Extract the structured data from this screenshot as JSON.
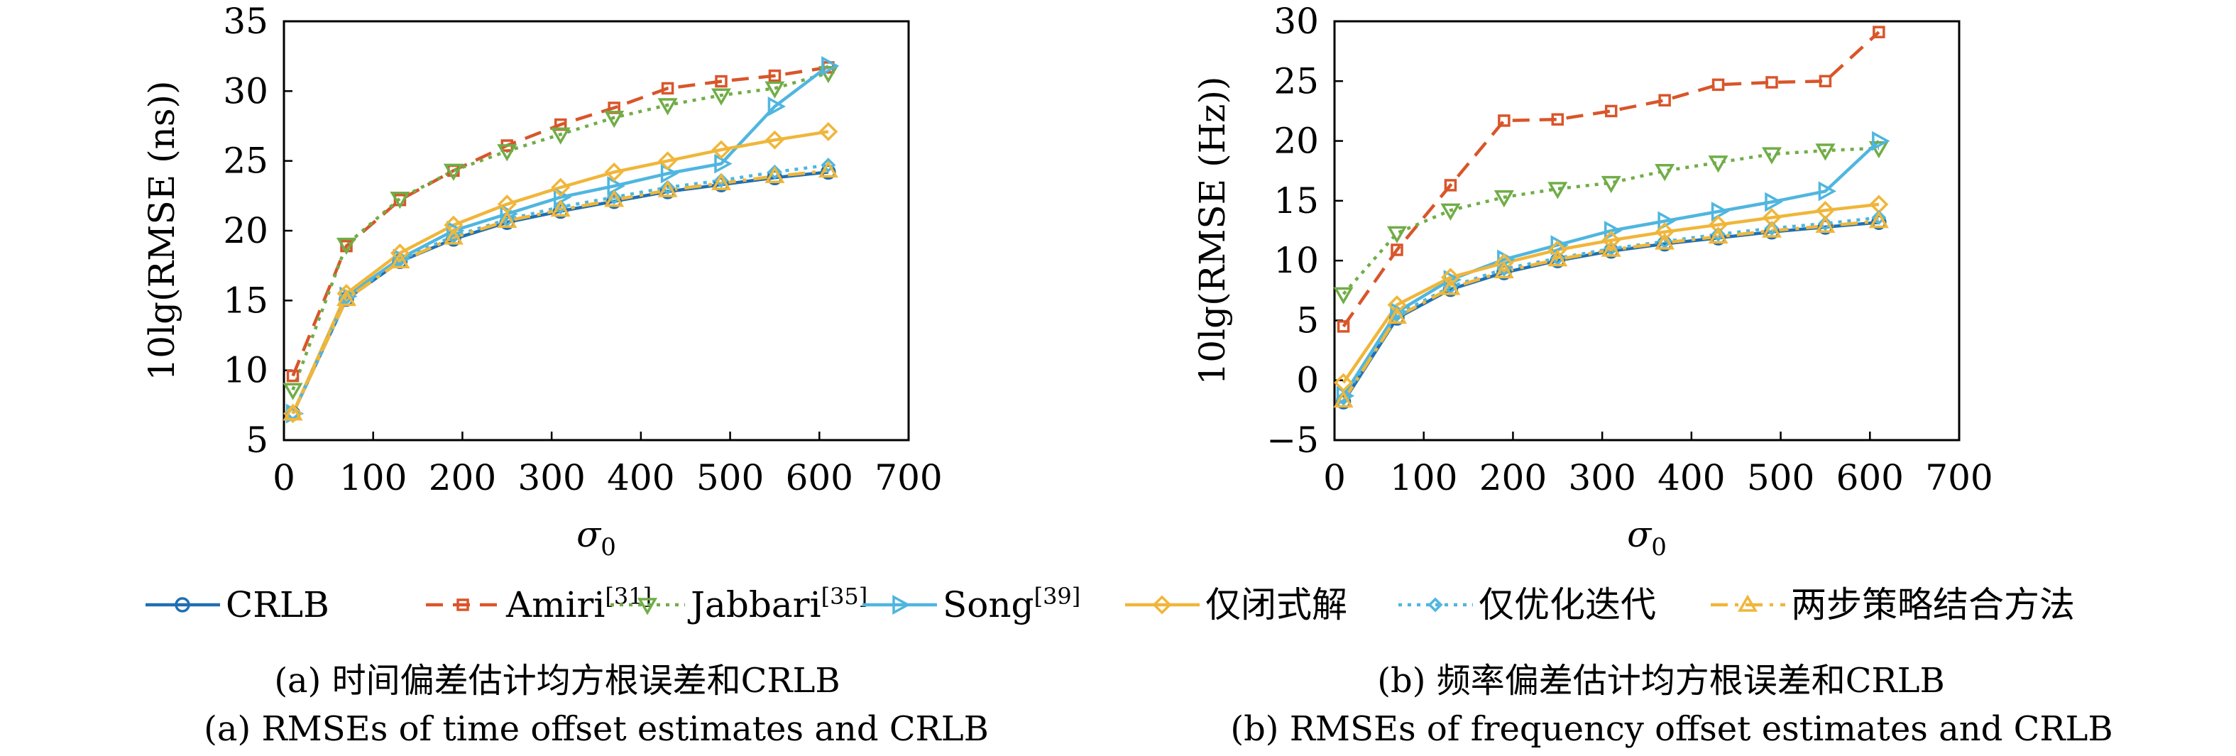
{
  "figure": {
    "legend": [
      {
        "label": "CRLB",
        "sup": "",
        "series_key": "crlb"
      },
      {
        "label": "Amiri",
        "sup": "[31]",
        "series_key": "amiri"
      },
      {
        "label": "Jabbari",
        "sup": "[35]",
        "series_key": "jabbari"
      },
      {
        "label": "Song",
        "sup": "[39]",
        "series_key": "song"
      },
      {
        "label": "仅闭式解",
        "sup": "",
        "series_key": "closed"
      },
      {
        "label": "仅优化迭代",
        "sup": "",
        "series_key": "iter"
      },
      {
        "label": "两步策略结合方法",
        "sup": "",
        "series_key": "twostep"
      }
    ],
    "styles": {
      "crlb": {
        "color": "#1f6fb2",
        "dash": "",
        "marker": "circle"
      },
      "amiri": {
        "color": "#d9552a",
        "dash": "24 14",
        "marker": "square"
      },
      "jabbari": {
        "color": "#70ad47",
        "dash": "5 8",
        "marker": "triangle-down"
      },
      "song": {
        "color": "#4fb6df",
        "dash": "",
        "marker": "triangle-right"
      },
      "closed": {
        "color": "#f0b63a",
        "dash": "",
        "marker": "diamond"
      },
      "iter": {
        "color": "#4fb6df",
        "dash": "5 8",
        "marker": "diamond-small"
      },
      "twostep": {
        "color": "#f0b63a",
        "dash": "24 10 5 10",
        "marker": "triangle-up"
      }
    }
  },
  "chart_data": [
    {
      "type": "line",
      "panel_id": "a",
      "caption_cn": "(a) 时间偏差估计均方根误差和CRLB",
      "caption_en": "(a) RMSEs of time offset estimates and CRLB",
      "ylabel": "10lg(RMSE (ns))",
      "xlabel": "σ",
      "xlabel_sub": "0",
      "xlim": [
        0,
        700
      ],
      "ylim": [
        5,
        35
      ],
      "xticks": [
        0,
        100,
        200,
        300,
        400,
        500,
        600,
        700
      ],
      "yticks": [
        5,
        10,
        15,
        20,
        25,
        30,
        35
      ],
      "grid": false,
      "x": [
        10,
        70,
        130,
        190,
        250,
        310,
        370,
        430,
        490,
        550,
        610
      ],
      "series": [
        {
          "key": "crlb",
          "values": [
            6.9,
            15.1,
            17.8,
            19.4,
            20.6,
            21.4,
            22.1,
            22.8,
            23.3,
            23.8,
            24.2
          ]
        },
        {
          "key": "amiri",
          "values": [
            9.6,
            18.9,
            22.2,
            24.3,
            26.1,
            27.6,
            28.8,
            30.2,
            30.7,
            31.1,
            31.7
          ]
        },
        {
          "key": "jabbari",
          "values": [
            8.6,
            19.0,
            22.3,
            24.3,
            25.7,
            26.9,
            28.1,
            29.0,
            29.7,
            30.2,
            31.3
          ]
        },
        {
          "key": "song",
          "values": [
            6.9,
            15.3,
            18.0,
            20.0,
            21.2,
            22.4,
            23.2,
            24.1,
            24.8,
            28.9,
            31.8
          ]
        },
        {
          "key": "closed",
          "values": [
            6.9,
            15.5,
            18.4,
            20.4,
            21.9,
            23.1,
            24.2,
            25.0,
            25.8,
            26.5,
            27.1
          ]
        },
        {
          "key": "iter",
          "values": [
            6.9,
            15.2,
            17.9,
            19.6,
            20.8,
            21.7,
            22.4,
            23.1,
            23.6,
            24.2,
            24.7
          ]
        },
        {
          "key": "twostep",
          "values": [
            6.9,
            15.1,
            17.8,
            19.5,
            20.7,
            21.5,
            22.2,
            22.9,
            23.4,
            23.9,
            24.3
          ]
        }
      ]
    },
    {
      "type": "line",
      "panel_id": "b",
      "caption_cn": "(b) 频率偏差估计均方根误差和CRLB",
      "caption_en": "(b) RMSEs of frequency offset estimates and CRLB",
      "ylabel": "10lg(RMSE (Hz))",
      "xlabel": "σ",
      "xlabel_sub": "0",
      "xlim": [
        0,
        700
      ],
      "ylim": [
        -5,
        30
      ],
      "xticks": [
        0,
        100,
        200,
        300,
        400,
        500,
        600,
        700
      ],
      "yticks": [
        -5,
        0,
        5,
        10,
        15,
        20,
        25,
        30
      ],
      "grid": false,
      "x": [
        10,
        70,
        130,
        190,
        250,
        310,
        370,
        430,
        490,
        550,
        610
      ],
      "series": [
        {
          "key": "crlb",
          "values": [
            -1.8,
            5.2,
            7.6,
            9.0,
            10.0,
            10.8,
            11.4,
            11.9,
            12.4,
            12.8,
            13.2
          ]
        },
        {
          "key": "amiri",
          "values": [
            4.5,
            10.9,
            16.3,
            21.7,
            21.8,
            22.5,
            23.4,
            24.7,
            24.9,
            25.0,
            29.1
          ]
        },
        {
          "key": "jabbari",
          "values": [
            7.2,
            12.3,
            14.2,
            15.3,
            16.0,
            16.5,
            17.5,
            18.2,
            18.9,
            19.2,
            19.4
          ]
        },
        {
          "key": "song",
          "values": [
            -1.3,
            5.7,
            8.4,
            10.1,
            11.3,
            12.5,
            13.3,
            14.1,
            14.9,
            15.8,
            20.0
          ]
        },
        {
          "key": "closed",
          "values": [
            -0.2,
            6.3,
            8.6,
            9.8,
            10.9,
            11.7,
            12.4,
            13.0,
            13.6,
            14.2,
            14.7
          ]
        },
        {
          "key": "iter",
          "values": [
            -1.5,
            5.5,
            7.8,
            9.3,
            10.2,
            11.0,
            11.6,
            12.2,
            12.7,
            13.1,
            13.6
          ]
        },
        {
          "key": "twostep",
          "values": [
            -1.7,
            5.3,
            7.7,
            9.1,
            10.1,
            10.9,
            11.5,
            12.0,
            12.5,
            12.9,
            13.3
          ]
        }
      ]
    }
  ]
}
